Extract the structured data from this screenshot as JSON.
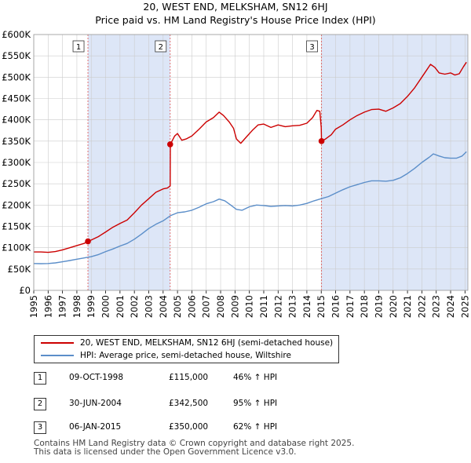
{
  "chart_data": {
    "type": "line",
    "title": "20, WEST END, MELKSHAM, SN12 6HJ",
    "subtitle": "Price paid vs. HM Land Registry's House Price Index (HPI)",
    "ylim": [
      0,
      600000
    ],
    "xlim": [
      1995.0,
      2025.2
    ],
    "y_ticks": [
      {
        "value": 0,
        "label": "£0"
      },
      {
        "value": 50000,
        "label": "£50K"
      },
      {
        "value": 100000,
        "label": "£100K"
      },
      {
        "value": 150000,
        "label": "£150K"
      },
      {
        "value": 200000,
        "label": "£200K"
      },
      {
        "value": 250000,
        "label": "£250K"
      },
      {
        "value": 300000,
        "label": "£300K"
      },
      {
        "value": 350000,
        "label": "£350K"
      },
      {
        "value": 400000,
        "label": "£400K"
      },
      {
        "value": 450000,
        "label": "£450K"
      },
      {
        "value": 500000,
        "label": "£500K"
      },
      {
        "value": 550000,
        "label": "£550K"
      },
      {
        "value": 600000,
        "label": "£600K"
      }
    ],
    "x_ticks": [
      1995,
      1996,
      1997,
      1998,
      1999,
      2000,
      2001,
      2002,
      2003,
      2004,
      2005,
      2006,
      2007,
      2008,
      2009,
      2010,
      2011,
      2012,
      2013,
      2014,
      2015,
      2016,
      2017,
      2018,
      2019,
      2020,
      2021,
      2022,
      2023,
      2024,
      2025
    ],
    "series": [
      {
        "name": "20, WEST END, MELKSHAM, SN12 6HJ (semi-detached house)",
        "color": "#cc0000",
        "points": [
          [
            1995.0,
            90000
          ],
          [
            1995.5,
            90000
          ],
          [
            1996.0,
            89000
          ],
          [
            1996.5,
            91000
          ],
          [
            1997.0,
            95000
          ],
          [
            1997.5,
            100000
          ],
          [
            1998.0,
            105000
          ],
          [
            1998.5,
            110000
          ],
          [
            1998.77,
            115000
          ],
          [
            1999.0,
            118000
          ],
          [
            1999.5,
            126000
          ],
          [
            2000.0,
            137000
          ],
          [
            2000.5,
            148000
          ],
          [
            2001.0,
            157000
          ],
          [
            2001.5,
            165000
          ],
          [
            2002.0,
            182000
          ],
          [
            2002.5,
            200000
          ],
          [
            2003.0,
            215000
          ],
          [
            2003.5,
            230000
          ],
          [
            2004.0,
            238000
          ],
          [
            2004.3,
            240000
          ],
          [
            2004.49,
            245000
          ],
          [
            2004.5,
            342500
          ],
          [
            2004.8,
            362000
          ],
          [
            2005.0,
            368000
          ],
          [
            2005.3,
            352000
          ],
          [
            2005.6,
            355000
          ],
          [
            2006.0,
            362000
          ],
          [
            2006.5,
            378000
          ],
          [
            2007.0,
            395000
          ],
          [
            2007.5,
            405000
          ],
          [
            2007.9,
            418000
          ],
          [
            2008.2,
            410000
          ],
          [
            2008.6,
            395000
          ],
          [
            2008.9,
            380000
          ],
          [
            2009.1,
            355000
          ],
          [
            2009.4,
            345000
          ],
          [
            2009.8,
            360000
          ],
          [
            2010.2,
            375000
          ],
          [
            2010.6,
            388000
          ],
          [
            2011.0,
            390000
          ],
          [
            2011.5,
            382000
          ],
          [
            2012.0,
            388000
          ],
          [
            2012.5,
            384000
          ],
          [
            2013.0,
            386000
          ],
          [
            2013.5,
            387000
          ],
          [
            2014.0,
            392000
          ],
          [
            2014.4,
            405000
          ],
          [
            2014.7,
            422000
          ],
          [
            2014.9,
            420000
          ],
          [
            2015.0,
            382000
          ],
          [
            2015.02,
            350000
          ],
          [
            2015.3,
            355000
          ],
          [
            2015.7,
            365000
          ],
          [
            2016.0,
            378000
          ],
          [
            2016.5,
            388000
          ],
          [
            2017.0,
            400000
          ],
          [
            2017.5,
            410000
          ],
          [
            2018.0,
            418000
          ],
          [
            2018.5,
            424000
          ],
          [
            2019.0,
            425000
          ],
          [
            2019.5,
            420000
          ],
          [
            2020.0,
            428000
          ],
          [
            2020.5,
            438000
          ],
          [
            2021.0,
            455000
          ],
          [
            2021.5,
            475000
          ],
          [
            2022.0,
            500000
          ],
          [
            2022.3,
            515000
          ],
          [
            2022.6,
            530000
          ],
          [
            2022.9,
            523000
          ],
          [
            2023.2,
            510000
          ],
          [
            2023.6,
            507000
          ],
          [
            2024.0,
            510000
          ],
          [
            2024.3,
            505000
          ],
          [
            2024.6,
            508000
          ],
          [
            2024.9,
            525000
          ],
          [
            2025.1,
            535000
          ]
        ]
      },
      {
        "name": "HPI: Average price, semi-detached house, Wiltshire",
        "color": "#5b8ec9",
        "points": [
          [
            1995.0,
            63000
          ],
          [
            1995.5,
            62500
          ],
          [
            1996.0,
            63000
          ],
          [
            1996.5,
            64500
          ],
          [
            1997.0,
            67000
          ],
          [
            1997.5,
            70000
          ],
          [
            1998.0,
            73000
          ],
          [
            1998.5,
            76000
          ],
          [
            1999.0,
            79000
          ],
          [
            1999.5,
            84000
          ],
          [
            2000.0,
            91000
          ],
          [
            2000.5,
            97000
          ],
          [
            2001.0,
            104000
          ],
          [
            2001.5,
            110000
          ],
          [
            2002.0,
            120000
          ],
          [
            2002.5,
            132000
          ],
          [
            2003.0,
            145000
          ],
          [
            2003.5,
            155000
          ],
          [
            2004.0,
            163000
          ],
          [
            2004.5,
            175000
          ],
          [
            2005.0,
            182000
          ],
          [
            2005.5,
            184000
          ],
          [
            2006.0,
            188000
          ],
          [
            2006.5,
            195000
          ],
          [
            2007.0,
            203000
          ],
          [
            2007.5,
            208000
          ],
          [
            2007.9,
            214000
          ],
          [
            2008.3,
            210000
          ],
          [
            2008.7,
            200000
          ],
          [
            2009.1,
            190000
          ],
          [
            2009.5,
            188000
          ],
          [
            2010.0,
            196000
          ],
          [
            2010.5,
            200000
          ],
          [
            2011.0,
            199000
          ],
          [
            2011.5,
            197000
          ],
          [
            2012.0,
            198000
          ],
          [
            2012.5,
            199000
          ],
          [
            2013.0,
            198000
          ],
          [
            2013.5,
            200000
          ],
          [
            2014.0,
            204000
          ],
          [
            2014.5,
            210000
          ],
          [
            2015.0,
            215000
          ],
          [
            2015.5,
            220000
          ],
          [
            2016.0,
            228000
          ],
          [
            2016.5,
            236000
          ],
          [
            2017.0,
            243000
          ],
          [
            2017.5,
            248000
          ],
          [
            2018.0,
            253000
          ],
          [
            2018.5,
            257000
          ],
          [
            2019.0,
            257000
          ],
          [
            2019.5,
            256000
          ],
          [
            2020.0,
            258000
          ],
          [
            2020.5,
            264000
          ],
          [
            2021.0,
            274000
          ],
          [
            2021.5,
            286000
          ],
          [
            2022.0,
            300000
          ],
          [
            2022.5,
            312000
          ],
          [
            2022.8,
            320000
          ],
          [
            2023.2,
            315000
          ],
          [
            2023.6,
            311000
          ],
          [
            2024.0,
            310000
          ],
          [
            2024.4,
            310000
          ],
          [
            2024.8,
            315000
          ],
          [
            2025.1,
            325000
          ]
        ]
      }
    ],
    "sales": [
      {
        "marker": "1",
        "x": 1998.77,
        "price": 115000
      },
      {
        "marker": "2",
        "x": 2004.49,
        "price": 342500
      },
      {
        "marker": "3",
        "x": 2015.02,
        "price": 350000
      }
    ],
    "shaded_ranges": [
      [
        1998.77,
        2004.49
      ],
      [
        2015.02,
        2025.2
      ]
    ]
  },
  "legend": {
    "property_label": "20, WEST END, MELKSHAM, SN12 6HJ (semi-detached house)",
    "hpi_label": "HPI: Average price, semi-detached house, Wiltshire"
  },
  "transactions": [
    {
      "marker": "1",
      "date": "09-OCT-1998",
      "price": "£115,000",
      "hpi": "46% ↑ HPI"
    },
    {
      "marker": "2",
      "date": "30-JUN-2004",
      "price": "£342,500",
      "hpi": "95% ↑ HPI"
    },
    {
      "marker": "3",
      "date": "06-JAN-2015",
      "price": "£350,000",
      "hpi": "62% ↑ HPI"
    }
  ],
  "footer": {
    "line1": "Contains HM Land Registry data © Crown copyright and database right 2025.",
    "line2": "This data is licensed under the Open Government Licence v3.0."
  },
  "colors": {
    "property": "#cc0000",
    "hpi": "#5b8ec9",
    "shade": "#dde6f7",
    "grid": "#cccccc"
  }
}
